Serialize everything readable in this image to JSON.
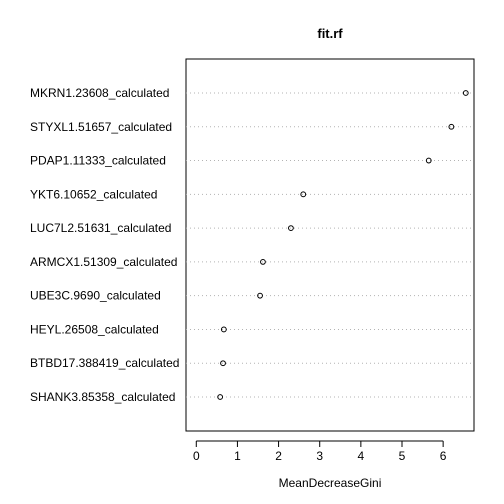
{
  "chart_data": {
    "type": "scatter",
    "title": "fit.rf",
    "xlabel": "MeanDecreaseGini",
    "ylabel": "",
    "xlim": [
      -0.25,
      6.75
    ],
    "xticks": [
      0,
      1,
      2,
      3,
      4,
      5,
      6
    ],
    "grid": "dotted horizontal lines per category",
    "categories": [
      "MKRN1.23608_calculated",
      "STYXL1.51657_calculated",
      "PDAP1.11333_calculated",
      "YKT6.10652_calculated",
      "LUC7L2.51631_calculated",
      "ARMCX1.51309_calculated",
      "UBE3C.9690_calculated",
      "HEYL.26508_calculated",
      "BTBD17.388419_calculated",
      "SHANK3.85358_calculated"
    ],
    "values": [
      6.55,
      6.2,
      5.65,
      2.6,
      2.3,
      1.62,
      1.55,
      0.67,
      0.65,
      0.58
    ]
  }
}
